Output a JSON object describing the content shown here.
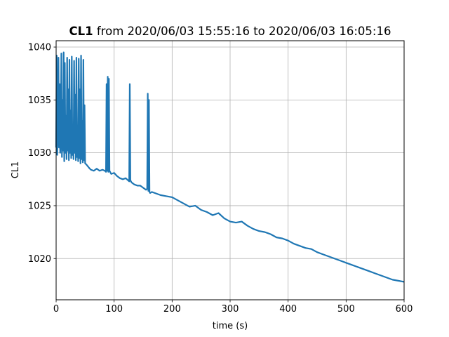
{
  "chart_data": {
    "type": "line",
    "title_series": "CL1",
    "title_rest": " from 2020/06/03 15:55:16 to 2020/06/03 16:05:16",
    "xlabel": "time (s)",
    "ylabel": "CL1",
    "xlim": [
      0,
      600
    ],
    "ylim": [
      1016.1,
      1040.6
    ],
    "xticks": [
      0,
      100,
      200,
      300,
      400,
      500,
      600
    ],
    "yticks": [
      1020,
      1025,
      1030,
      1035,
      1040
    ],
    "grid": true,
    "series": [
      {
        "color": "#1f77b4",
        "x": [
          0,
          1,
          2,
          3,
          4,
          5,
          6,
          7,
          8,
          9,
          10,
          11,
          12,
          13,
          14,
          15,
          16,
          17,
          18,
          19,
          20,
          21,
          22,
          23,
          24,
          25,
          26,
          27,
          28,
          29,
          30,
          31,
          32,
          33,
          34,
          35,
          36,
          37,
          38,
          39,
          40,
          41,
          42,
          43,
          44,
          45,
          46,
          47,
          48,
          49,
          50,
          52,
          55,
          58,
          60,
          65,
          70,
          75,
          80,
          84,
          86,
          87,
          88,
          89,
          90,
          91,
          92,
          95,
          100,
          105,
          110,
          115,
          120,
          124,
          126,
          127,
          128,
          129,
          130,
          135,
          140,
          145,
          150,
          155,
          157,
          158,
          159,
          160,
          161,
          162,
          165,
          170,
          180,
          190,
          200,
          210,
          220,
          230,
          240,
          250,
          260,
          270,
          280,
          290,
          300,
          310,
          320,
          330,
          340,
          350,
          360,
          370,
          380,
          390,
          400,
          410,
          420,
          430,
          440,
          450,
          460,
          470,
          480,
          490,
          500,
          510,
          520,
          530,
          540,
          550,
          560,
          570,
          580,
          590,
          600
        ],
        "y": [
          1030.5,
          1039.2,
          1029.8,
          1033.0,
          1039.0,
          1030.5,
          1036.5,
          1030.0,
          1031.2,
          1039.4,
          1029.6,
          1035.0,
          1030.2,
          1039.5,
          1029.2,
          1038.5,
          1030.0,
          1033.5,
          1029.4,
          1039.0,
          1030.2,
          1036.0,
          1029.3,
          1038.8,
          1030.0,
          1034.0,
          1029.5,
          1039.1,
          1029.8,
          1032.5,
          1029.4,
          1038.7,
          1030.0,
          1035.5,
          1029.3,
          1039.0,
          1029.6,
          1031.5,
          1029.2,
          1038.9,
          1029.5,
          1036.0,
          1029.0,
          1039.2,
          1029.4,
          1033.0,
          1029.1,
          1038.8,
          1029.3,
          1034.5,
          1029.0,
          1028.9,
          1028.7,
          1028.5,
          1028.4,
          1028.3,
          1028.5,
          1028.3,
          1028.4,
          1028.3,
          1028.2,
          1036.5,
          1028.3,
          1037.2,
          1028.2,
          1037.0,
          1028.3,
          1028.0,
          1028.1,
          1027.8,
          1027.6,
          1027.5,
          1027.6,
          1027.4,
          1027.3,
          1036.5,
          1027.4,
          1027.3,
          1027.2,
          1027.0,
          1026.9,
          1026.9,
          1026.7,
          1026.5,
          1026.6,
          1035.6,
          1026.4,
          1035.0,
          1026.3,
          1026.2,
          1026.3,
          1026.2,
          1026.0,
          1025.9,
          1025.8,
          1025.5,
          1025.2,
          1024.9,
          1025.0,
          1024.6,
          1024.4,
          1024.1,
          1024.3,
          1023.8,
          1023.5,
          1023.4,
          1023.5,
          1023.1,
          1022.8,
          1022.6,
          1022.5,
          1022.3,
          1022.0,
          1021.9,
          1021.7,
          1021.4,
          1021.2,
          1021.0,
          1020.9,
          1020.6,
          1020.4,
          1020.2,
          1020.0,
          1019.8,
          1019.6,
          1019.4,
          1019.2,
          1019.0,
          1018.8,
          1018.6,
          1018.4,
          1018.2,
          1018.0,
          1017.9,
          1017.8
        ]
      }
    ]
  }
}
